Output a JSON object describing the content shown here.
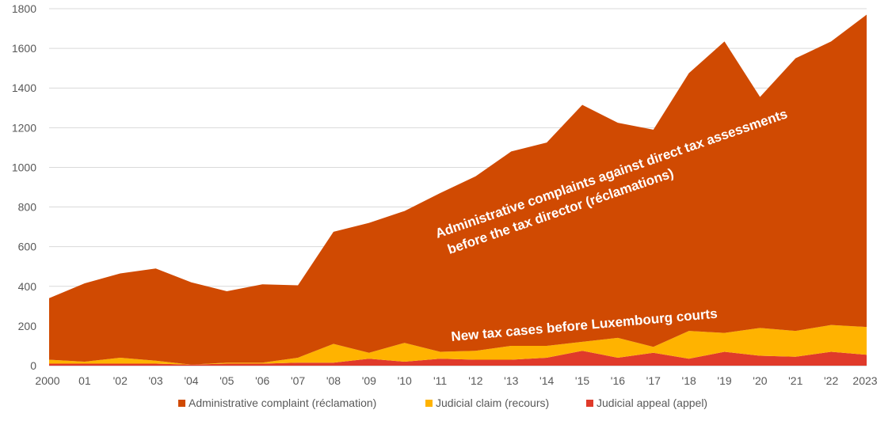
{
  "chart_data": {
    "type": "area",
    "stacked": true,
    "x": [
      "2000",
      "01",
      "'02",
      "'03",
      "'04",
      "'05",
      "'06",
      "'07",
      "'08",
      "'09",
      "'10",
      "'11",
      "'12",
      "'13",
      "'14",
      "'15",
      "'16",
      "'17",
      "'18",
      "'19",
      "'20",
      "'21",
      "'22",
      "2023"
    ],
    "ylim": [
      0,
      1800
    ],
    "yticks": [
      0,
      200,
      400,
      600,
      800,
      1000,
      1200,
      1400,
      1600,
      1800
    ],
    "grid": true,
    "legend_position": "bottom",
    "series": [
      {
        "name": "Judicial appeal (appel)",
        "color": "#e03a2a",
        "values": [
          10,
          10,
          10,
          10,
          5,
          10,
          10,
          15,
          15,
          35,
          20,
          35,
          30,
          30,
          40,
          75,
          40,
          65,
          35,
          70,
          50,
          45,
          70,
          55
        ]
      },
      {
        "name": "Judicial claim (recours)",
        "color": "#ffb300",
        "values": [
          20,
          10,
          30,
          15,
          0,
          5,
          5,
          25,
          95,
          30,
          95,
          35,
          45,
          70,
          60,
          45,
          100,
          30,
          140,
          95,
          140,
          130,
          135,
          140
        ]
      },
      {
        "name": "Administrative complaint (réclamation)",
        "color": "#d04a02",
        "values": [
          310,
          395,
          425,
          465,
          415,
          360,
          395,
          365,
          565,
          655,
          665,
          800,
          880,
          980,
          1025,
          1195,
          1085,
          1095,
          1300,
          1470,
          1165,
          1375,
          1430,
          1575
        ]
      }
    ],
    "legend": [
      {
        "label": "Administrative complaint (réclamation)",
        "color": "#d04a02"
      },
      {
        "label": "Judicial claim (recours)",
        "color": "#ffb300"
      },
      {
        "label": "Judicial appeal (appel)",
        "color": "#e03a2a"
      }
    ],
    "annotations": {
      "main_line1": "Administrative complaints against direct tax assessments",
      "main_line2": "before the tax director (réclamations)",
      "courts": "New tax cases before Luxembourg courts"
    }
  }
}
